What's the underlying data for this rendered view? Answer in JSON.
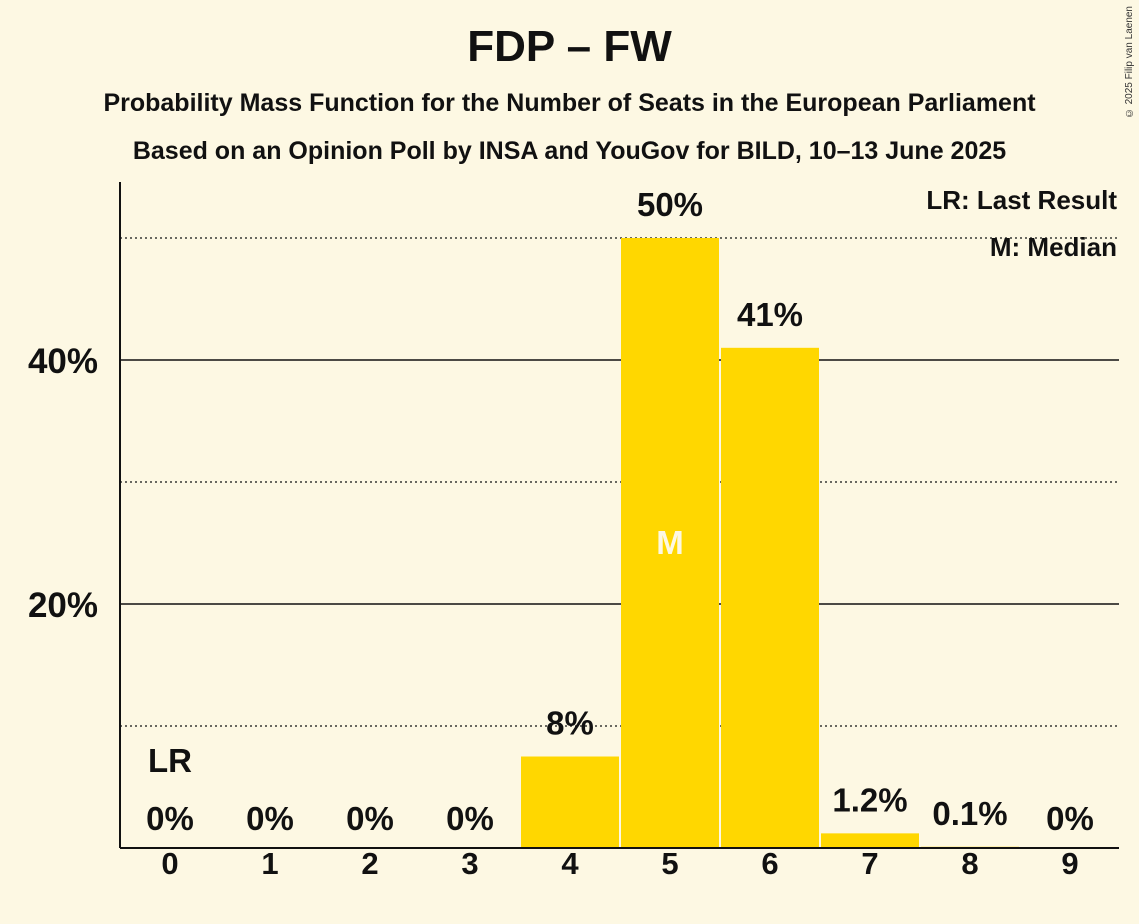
{
  "title": "FDP – FW",
  "subtitle1": "Probability Mass Function for the Number of Seats in the European Parliament",
  "subtitle2": "Based on an Opinion Poll by INSA and YouGov for BILD, 10–13 June 2025",
  "copyright": "© 2025 Filip van Laenen",
  "colors": {
    "bar": "#ffd700",
    "background": "#fdf8e3",
    "text": "#111111",
    "median_text": "#fdf8e3"
  },
  "chart_data": {
    "type": "bar",
    "categories": [
      "0",
      "1",
      "2",
      "3",
      "4",
      "5",
      "6",
      "7",
      "8",
      "9"
    ],
    "values": [
      0,
      0,
      0,
      0,
      7.5,
      50,
      41,
      1.2,
      0.1,
      0
    ],
    "labels": [
      "0%",
      "0%",
      "0%",
      "0%",
      "8%",
      "50%",
      "41%",
      "1.2%",
      "0.1%",
      "0%"
    ],
    "ylim": [
      0,
      55
    ],
    "major_ticks": [
      20,
      40
    ],
    "major_tick_labels": [
      "20%",
      "40%"
    ],
    "minor_gridlines": [
      10,
      30,
      50
    ],
    "last_result": {
      "category": "0",
      "label": "LR"
    },
    "median": {
      "category": "5",
      "label": "M"
    },
    "legend": {
      "position": "top-right",
      "items": [
        "LR: Last Result",
        "M: Median"
      ]
    }
  }
}
